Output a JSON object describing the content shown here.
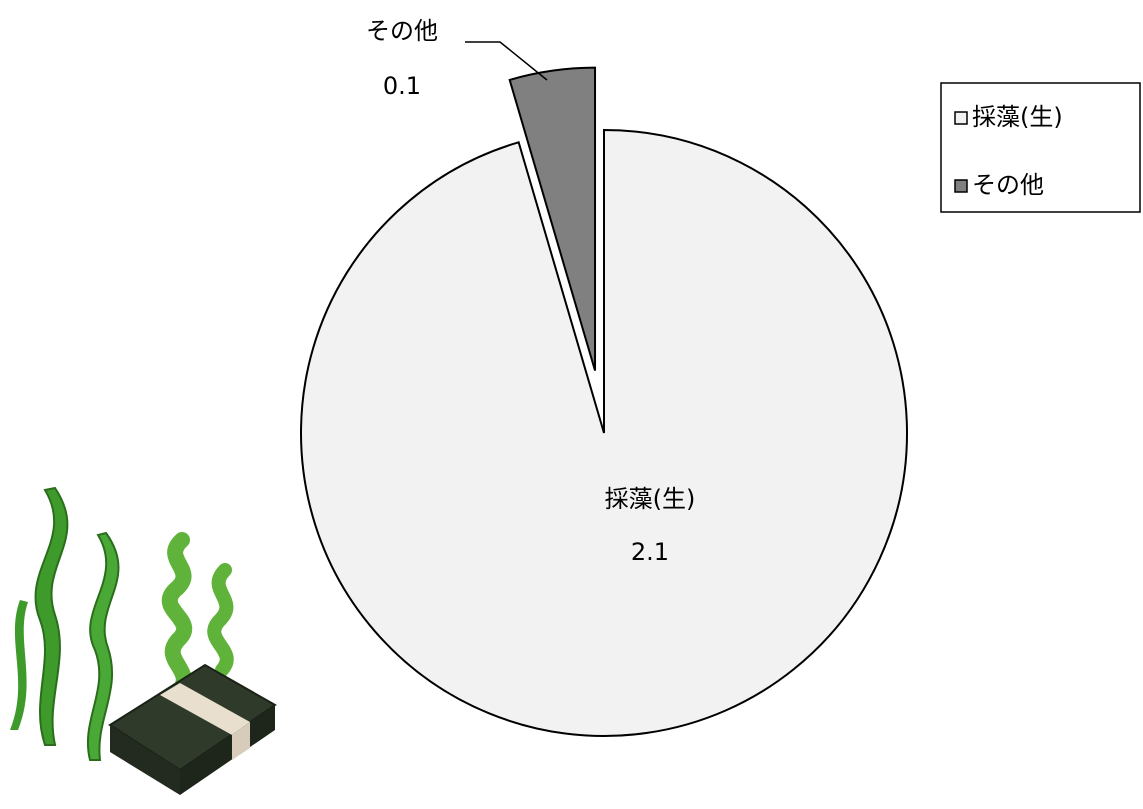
{
  "chart_data": {
    "type": "pie",
    "categories": [
      "採藻(生)",
      "その他"
    ],
    "values": [
      2.1,
      0.1
    ],
    "colors": [
      "#f2f2f2",
      "#808080"
    ],
    "legend": "upper right"
  }
}
